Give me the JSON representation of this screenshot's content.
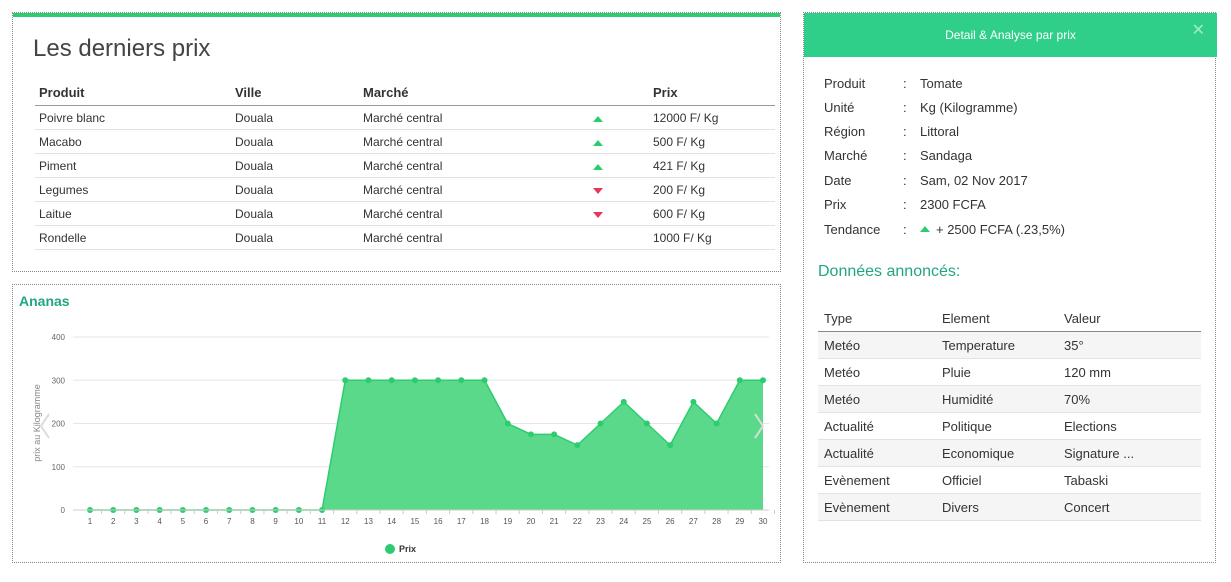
{
  "latest_prices": {
    "title": "Les derniers prix",
    "columns": [
      "Produit",
      "Ville",
      "Marché",
      "",
      "Prix"
    ],
    "rows": [
      {
        "produit": "Poivre blanc",
        "ville": "Douala",
        "marche": "Marché central",
        "trend": "up",
        "prix": "12000 F/ Kg"
      },
      {
        "produit": "Macabo",
        "ville": "Douala",
        "marche": "Marché central",
        "trend": "up",
        "prix": "500 F/ Kg"
      },
      {
        "produit": "Piment",
        "ville": "Douala",
        "marche": "Marché central",
        "trend": "up",
        "prix": "421 F/ Kg"
      },
      {
        "produit": "Legumes",
        "ville": "Douala",
        "marche": "Marché central",
        "trend": "down",
        "prix": "200 F/ Kg"
      },
      {
        "produit": "Laitue",
        "ville": "Douala",
        "marche": "Marché central",
        "trend": "down",
        "prix": "600 F/ Kg"
      },
      {
        "produit": "Rondelle",
        "ville": "Douala",
        "marche": "Marché central",
        "trend": "none",
        "prix": "1000 F/ Kg"
      }
    ],
    "colors": {
      "up": "#2ecc71",
      "down": "#e8365a",
      "accent": "#2ecc71"
    }
  },
  "chart_data": {
    "type": "area",
    "title": "Ananas",
    "ylabel": "prix au Kilogramme",
    "xlabel": "",
    "x": [
      1,
      2,
      3,
      4,
      5,
      6,
      7,
      8,
      9,
      10,
      11,
      12,
      13,
      14,
      15,
      16,
      17,
      18,
      19,
      20,
      21,
      22,
      23,
      24,
      25,
      26,
      27,
      28,
      29,
      30
    ],
    "series": [
      {
        "name": "Prix",
        "values": [
          0,
          0,
          0,
          0,
          0,
          0,
          0,
          0,
          0,
          0,
          0,
          300,
          300,
          300,
          300,
          300,
          300,
          300,
          200,
          175,
          175,
          150,
          200,
          250,
          200,
          150,
          250,
          200,
          300,
          300
        ],
        "color": "#2ecc71",
        "fill": "#5bd98a"
      }
    ],
    "ylim": [
      0,
      400
    ],
    "yticks": [
      0,
      100,
      200,
      300,
      400
    ],
    "grid": true,
    "legend_position": "bottom"
  },
  "detail": {
    "header": "Detail & Analyse par prix",
    "close_icon": "close-icon",
    "rows": [
      {
        "label": "Produit",
        "sep": ":",
        "value": "Tomate"
      },
      {
        "label": "Unité",
        "sep": ":",
        "value": "Kg (Kilogramme)"
      },
      {
        "label": "Région",
        "sep": ":",
        "value": "Littoral"
      },
      {
        "label": "Marché",
        "sep": ":",
        "value": "Sandaga"
      },
      {
        "label": "Date",
        "sep": ":",
        "value": "Sam, 02 Nov 2017"
      },
      {
        "label": "Prix",
        "sep": ":",
        "value": "2300 FCFA"
      }
    ],
    "trend": {
      "label": "Tendance",
      "sep": ":",
      "value": "+ 2500 FCFA (.23,5%)",
      "icon": "trend-up-icon"
    },
    "announce_title": "Données annoncés:",
    "announce_columns": [
      "Type",
      "Element",
      "Valeur"
    ],
    "announce_rows": [
      {
        "type": "Metéo",
        "element": "Temperature",
        "valeur": "35°"
      },
      {
        "type": "Metéo",
        "element": "Pluie",
        "valeur": "120 mm"
      },
      {
        "type": "Metéo",
        "element": "Humidité",
        "valeur": "70%"
      },
      {
        "type": "Actualité",
        "element": "Politique",
        "valeur": "Elections"
      },
      {
        "type": "Actualité",
        "element": "Economique",
        "valeur": "Signature ..."
      },
      {
        "type": "Evènement",
        "element": "Officiel",
        "valeur": "Tabaski"
      },
      {
        "type": "Evènement",
        "element": "Divers",
        "valeur": "Concert"
      }
    ],
    "header_color": "#2fcf8a"
  }
}
